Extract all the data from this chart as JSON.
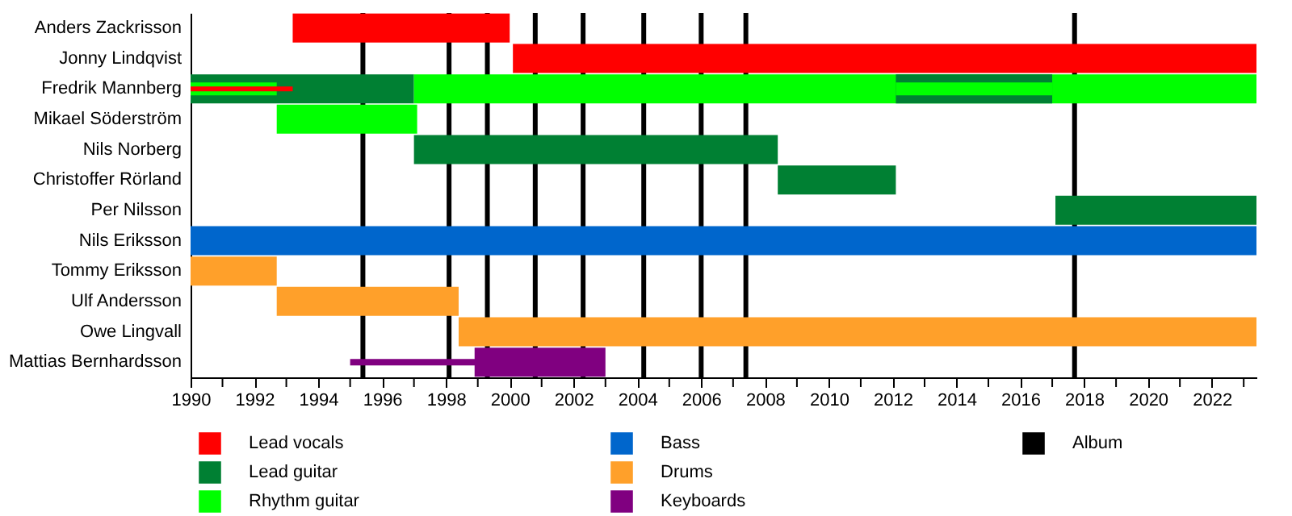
{
  "chart_data": {
    "type": "bar",
    "orientation": "horizontal",
    "grid": false,
    "legend": "bottom",
    "categories": [
      "Anders Zackrisson",
      "Jonny Lindqvist",
      "Fredrik Mannberg",
      "Mikael Söderström",
      "Nils Norberg",
      "Christoffer Rörland",
      "Per Nilsson",
      "Nils Eriksson",
      "Tommy Eriksson",
      "Ulf Andersson",
      "Owe Lingvall",
      "Mattias Bernhardsson"
    ],
    "xlim": [
      1990,
      2023.4
    ],
    "xticks": [
      1990,
      {
        "value": 1991,
        "label": null
      },
      1992,
      {
        "value": 1993,
        "label": null
      },
      1994,
      {
        "value": 1995,
        "label": null
      },
      1996,
      {
        "value": 1997,
        "label": null
      },
      1998,
      {
        "value": 1999,
        "label": null
      },
      2000,
      {
        "value": 2001,
        "label": null
      },
      2002,
      {
        "value": 2003,
        "label": null
      },
      2004,
      {
        "value": 2005,
        "label": null
      },
      2006,
      {
        "value": 2007,
        "label": null
      },
      2008,
      {
        "value": 2009,
        "label": null
      },
      2010,
      {
        "value": 2011,
        "label": null
      },
      2012,
      {
        "value": 2013,
        "label": null
      },
      2014,
      {
        "value": 2015,
        "label": null
      },
      2016,
      {
        "value": 2017,
        "label": null
      },
      2018,
      {
        "value": 2019,
        "label": null
      },
      2020,
      {
        "value": 2021,
        "label": null
      },
      2022,
      {
        "value": 2023,
        "label": null
      }
    ],
    "series": [
      {
        "name": "Lead vocals",
        "color": "#ff0000",
        "base": [
          1993.2,
          2000.1,
          null,
          null,
          null,
          null,
          null,
          null,
          null,
          null,
          null,
          null
        ],
        "values": [
          6.8,
          23.3,
          null,
          null,
          null,
          null,
          null,
          null,
          null,
          null,
          null,
          null
        ]
      },
      {
        "name": "Lead guitar",
        "color": "#008033",
        "base": [
          null,
          null,
          1990,
          null,
          1997.0,
          2008.4,
          2017.1,
          null,
          null,
          null,
          null,
          null
        ],
        "values": [
          null,
          null,
          7.0,
          null,
          11.4,
          3.7,
          6.3,
          null,
          null,
          null,
          null,
          null
        ]
      },
      {
        "name": "Rhythm guitar",
        "color": "#00ff00",
        "base": [
          null,
          null,
          1997.0,
          1992.7,
          null,
          null,
          null,
          null,
          null,
          null,
          null,
          null
        ],
        "values": [
          null,
          null,
          26.4,
          4.4,
          null,
          null,
          null,
          null,
          null,
          null,
          null,
          null
        ]
      },
      {
        "name": "Bass",
        "color": "#0066cc",
        "base": [
          null,
          null,
          null,
          null,
          null,
          null,
          null,
          1990,
          null,
          null,
          null,
          null
        ],
        "values": [
          null,
          null,
          null,
          null,
          null,
          null,
          null,
          33.4,
          null,
          null,
          null,
          null
        ]
      },
      {
        "name": "Drums",
        "color": "#ffa02a",
        "base": [
          null,
          null,
          null,
          null,
          null,
          null,
          null,
          null,
          1990,
          1992.7,
          1998.4,
          null
        ],
        "values": [
          null,
          null,
          null,
          null,
          null,
          null,
          null,
          null,
          2.7,
          5.7,
          25.0,
          null
        ]
      },
      {
        "name": "Keyboards",
        "color": "#800080",
        "base": [
          null,
          null,
          null,
          null,
          null,
          null,
          null,
          null,
          null,
          null,
          null,
          1998.9
        ],
        "values": [
          null,
          null,
          null,
          null,
          null,
          null,
          null,
          null,
          null,
          null,
          null,
          4.1
        ]
      },
      {
        "color": "#008033",
        "base": [
          null,
          null,
          2012.1,
          null,
          null,
          null,
          null,
          null,
          null,
          null,
          null,
          null
        ],
        "values": [
          null,
          null,
          4.9,
          null,
          null,
          null,
          null,
          null,
          null,
          null,
          null,
          null
        ]
      },
      {
        "color": "#00ff00",
        "base": [
          null,
          null,
          1990,
          null,
          null,
          null,
          null,
          null,
          null,
          null,
          null,
          null
        ],
        "values": [
          null,
          null,
          2.7,
          null,
          null,
          null,
          null,
          null,
          null,
          null,
          null,
          null
        ]
      },
      {
        "color": "#00ff00",
        "base": [
          null,
          null,
          2012.1,
          null,
          null,
          null,
          null,
          null,
          null,
          null,
          null,
          null
        ],
        "values": [
          null,
          null,
          4.9,
          null,
          null,
          null,
          null,
          null,
          null,
          null,
          null,
          null
        ]
      },
      {
        "color": "#ff0000",
        "base": [
          null,
          null,
          1990,
          null,
          null,
          null,
          null,
          null,
          null,
          null,
          null,
          null
        ],
        "values": [
          null,
          null,
          3.2,
          null,
          null,
          null,
          null,
          null,
          null,
          null,
          null,
          null
        ]
      },
      {
        "color": "#800080",
        "base": [
          null,
          null,
          null,
          null,
          null,
          null,
          null,
          null,
          null,
          null,
          null,
          1995.0
        ],
        "values": [
          null,
          null,
          null,
          null,
          null,
          null,
          null,
          null,
          null,
          null,
          null,
          4.0
        ]
      }
    ],
    "ref_lines": [
      {
        "axis": "x",
        "value": 1995.4,
        "label": "Album",
        "color": "#000000"
      },
      {
        "axis": "x",
        "value": 1998.1,
        "color": "#000000"
      },
      {
        "axis": "x",
        "value": 1999.3,
        "color": "#000000"
      },
      {
        "axis": "x",
        "value": 2000.8,
        "color": "#000000"
      },
      {
        "axis": "x",
        "value": 2002.3,
        "color": "#000000"
      },
      {
        "axis": "x",
        "value": 2004.2,
        "color": "#000000"
      },
      {
        "axis": "x",
        "value": 2006.0,
        "color": "#000000"
      },
      {
        "axis": "x",
        "value": 2007.4,
        "color": "#000000"
      },
      {
        "axis": "x",
        "value": 2017.7,
        "color": "#000000"
      }
    ]
  }
}
